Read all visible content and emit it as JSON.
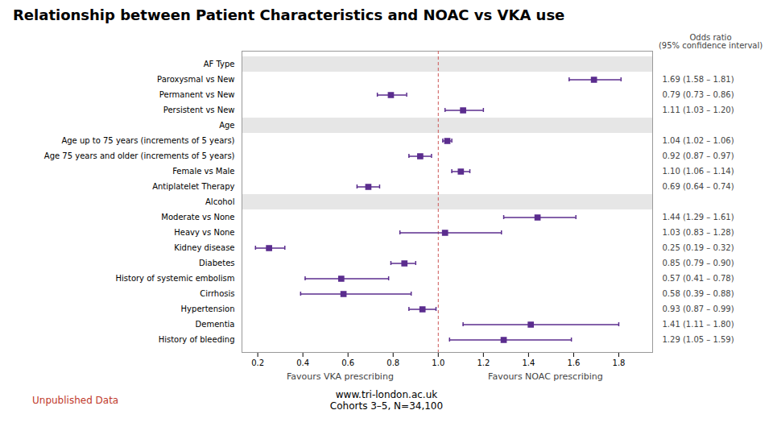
{
  "chart_data": {
    "type": "forest",
    "title": "Relationship between Patient Characteristics and NOAC vs VKA use",
    "categories": [
      "AF Type",
      "Paroxysmal vs New",
      "Permanent vs New",
      "Persistent vs New",
      "Age",
      "Age up to 75 years (increments of 5 years)",
      "Age 75 years and older (increments of 5 years)",
      "Female vs Male",
      "Antiplatelet Therapy",
      "Alcohol",
      "Moderate vs None",
      "Heavy vs None",
      "Kidney disease",
      "Diabetes",
      "History of systemic embolism",
      "Cirrhosis",
      "Hypertension",
      "Dementia",
      "History of bleeding"
    ],
    "values": [
      null,
      1.69,
      0.79,
      1.11,
      null,
      1.04,
      0.92,
      1.1,
      0.69,
      null,
      1.44,
      1.03,
      0.25,
      0.85,
      0.57,
      0.58,
      0.93,
      1.41,
      1.29
    ],
    "lo": [
      null,
      1.58,
      0.73,
      1.03,
      null,
      1.02,
      0.87,
      1.06,
      0.64,
      null,
      1.29,
      0.83,
      0.19,
      0.79,
      0.41,
      0.39,
      0.87,
      1.11,
      1.05
    ],
    "hi": [
      null,
      1.81,
      0.86,
      1.2,
      null,
      1.06,
      0.97,
      1.14,
      0.74,
      null,
      1.61,
      1.28,
      0.32,
      0.9,
      0.78,
      0.88,
      0.99,
      1.8,
      1.59
    ],
    "value_labels": [
      null,
      "1.69 (1.58 – 1.81)",
      "0.79 (0.73 – 0.86)",
      "1.11 (1.03 – 1.20)",
      null,
      "1.04 (1.02 – 1.06)",
      "0.92 (0.87 – 0.97)",
      "1.10 (1.06 – 1.14)",
      "0.69 (0.64 – 0.74)",
      null,
      "1.44 (1.29 – 1.61)",
      "1.03 (0.83 – 1.28)",
      "0.25 (0.19 – 0.32)",
      "0.85 (0.79 – 0.90)",
      "0.57 (0.41 – 0.78)",
      "0.58 (0.39 – 0.88)",
      "0.93 (0.87 – 0.99)",
      "1.41 (1.11 – 1.80)",
      "1.29 (1.05 – 1.59)"
    ],
    "data_labels": true,
    "color": "#5b2d8e",
    "xlim": [
      0.13,
      1.95
    ],
    "xticks": [
      0.2,
      0.4,
      0.6,
      0.8,
      {
        "value": 1.0,
        "label": "1.0"
      },
      1.2,
      1.4,
      1.6,
      1.8
    ],
    "ref_line": 1.0,
    "xlabel": [
      "Favours VKA prescribing",
      "Favours NOAC prescribing"
    ],
    "grid": false,
    "annotations": [
      {
        "text": "Odds ratio\n(95% confidence interval)"
      },
      {
        "text": "Unpublished Data",
        "color": "#c0392b"
      },
      {
        "text": "www.tri-london.ac.uk"
      },
      {
        "text": "Cohorts 3–5, N=34,100"
      }
    ]
  }
}
